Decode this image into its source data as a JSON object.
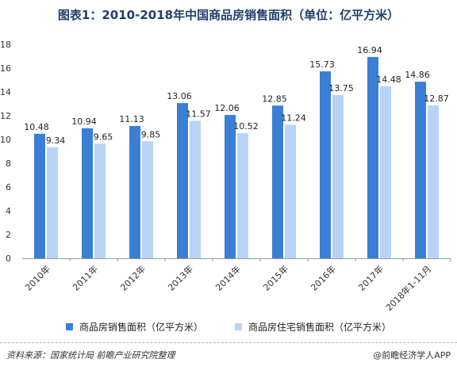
{
  "chart_data": {
    "type": "bar",
    "title": "图表1：2010-2018年中国商品房销售面积（单位：亿平方米）",
    "categories": [
      "2010年",
      "2011年",
      "2012年",
      "2013年",
      "2014年",
      "2015年",
      "2016年",
      "2017年",
      "2018年1-11月"
    ],
    "series": [
      {
        "name": "商品房销售面积（亿平方米）",
        "color": "#3a7fd5",
        "values": [
          10.48,
          10.94,
          11.13,
          13.06,
          12.06,
          12.85,
          15.73,
          16.94,
          14.86
        ]
      },
      {
        "name": "商品房住宅销售面积（亿平方米）",
        "color": "#b7d3f5",
        "values": [
          9.34,
          9.65,
          9.85,
          11.57,
          10.52,
          11.24,
          13.75,
          14.48,
          12.87
        ]
      }
    ],
    "ylim": [
      0,
      18
    ],
    "yticks": [
      0,
      2,
      4,
      6,
      8,
      10,
      12,
      14,
      16,
      18
    ],
    "grid": false,
    "legend": "bottom"
  },
  "footer": {
    "source": "资料来源：国家统计局  前瞻产业研究院整理",
    "brand": "@前瞻经济学人APP"
  }
}
